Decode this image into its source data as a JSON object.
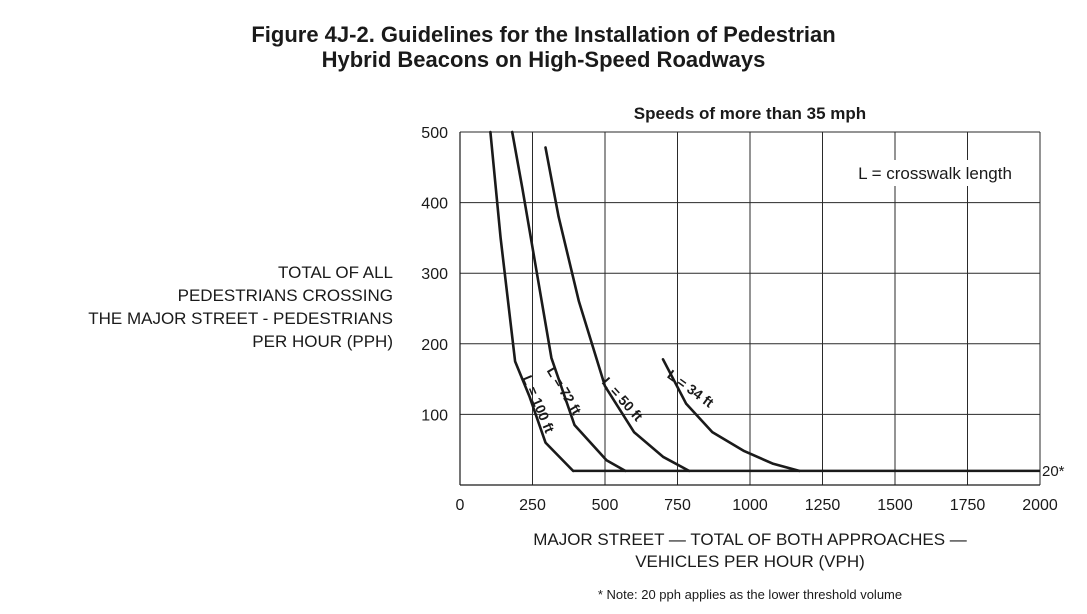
{
  "title_line1": "Figure 4J-2.  Guidelines for the Installation of Pedestrian",
  "title_line2": "Hybrid Beacons on High-Speed Roadways",
  "subtitle": "Speeds of more than 35 mph",
  "ylabel_lines": [
    "TOTAL OF ALL",
    "PEDESTRIANS CROSSING",
    "THE MAJOR STREET - PEDESTRIANS",
    "PER HOUR (PPH)"
  ],
  "xlabel_lines": [
    "MAJOR STREET — TOTAL OF BOTH APPROACHES —",
    "VEHICLES PER HOUR (VPH)"
  ],
  "note": "* Note: 20 pph applies as the lower threshold volume",
  "legend_text": "L = crosswalk length",
  "threshold_label": "20*",
  "chart_data": {
    "type": "line",
    "title": "Speeds of more than 35 mph",
    "xlabel": "MAJOR STREET — TOTAL OF BOTH APPROACHES — VEHICLES PER HOUR (VPH)",
    "ylabel": "TOTAL OF ALL PEDESTRIANS CROSSING THE MAJOR STREET - PEDESTRIANS PER HOUR (PPH)",
    "xlim": [
      0,
      2000
    ],
    "ylim": [
      0,
      500
    ],
    "x_ticks": [
      0,
      250,
      500,
      750,
      1000,
      1250,
      1500,
      1750,
      2000
    ],
    "y_ticks": [
      100,
      200,
      300,
      400,
      500
    ],
    "grid": true,
    "threshold_line": {
      "y": 20,
      "x_start": 390,
      "x_end": 2000,
      "label": "20*"
    },
    "series": [
      {
        "name": "L = 100 ft",
        "points": [
          [
            105,
            500
          ],
          [
            140,
            350
          ],
          [
            190,
            175
          ],
          [
            240,
            125
          ],
          [
            295,
            60
          ],
          [
            390,
            20
          ]
        ]
      },
      {
        "name": "L = 72 ft",
        "points": [
          [
            180,
            500
          ],
          [
            215,
            420
          ],
          [
            265,
            300
          ],
          [
            315,
            180
          ],
          [
            395,
            85
          ],
          [
            505,
            35
          ],
          [
            570,
            20
          ]
        ]
      },
      {
        "name": "L = 50 ft",
        "points": [
          [
            295,
            478
          ],
          [
            340,
            380
          ],
          [
            410,
            260
          ],
          [
            500,
            140
          ],
          [
            600,
            75
          ],
          [
            700,
            40
          ],
          [
            790,
            20
          ]
        ]
      },
      {
        "name": "L = 34 ft",
        "points": [
          [
            700,
            178
          ],
          [
            780,
            115
          ],
          [
            870,
            75
          ],
          [
            980,
            48
          ],
          [
            1080,
            30
          ],
          [
            1170,
            20
          ]
        ]
      }
    ],
    "curve_labels": [
      {
        "text": "L = 100 ft",
        "series": "L = 100 ft"
      },
      {
        "text": "L = 72 ft",
        "series": "L = 72 ft"
      },
      {
        "text": "L = 50 ft",
        "series": "L = 50 ft"
      },
      {
        "text": "L = 34 ft",
        "series": "L = 34 ft"
      }
    ]
  }
}
